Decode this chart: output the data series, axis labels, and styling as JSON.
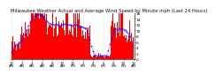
{
  "title": "Milwaukee Weather Actual and Average Wind Speed by Minute mph (Last 24 Hours)",
  "title_fontsize": 3.8,
  "background_color": "#ffffff",
  "plot_bg_color": "#ffffff",
  "bar_color": "#ff0000",
  "line_color": "#0000ff",
  "ylim": [
    0,
    16
  ],
  "yticks": [
    0,
    2,
    4,
    6,
    8,
    10,
    12,
    14,
    16
  ],
  "ytick_fontsize": 3.2,
  "xtick_fontsize": 2.8,
  "n_points": 1440,
  "grid_color": "#bbbbbb",
  "num_xticks": 13,
  "seed": 12345
}
